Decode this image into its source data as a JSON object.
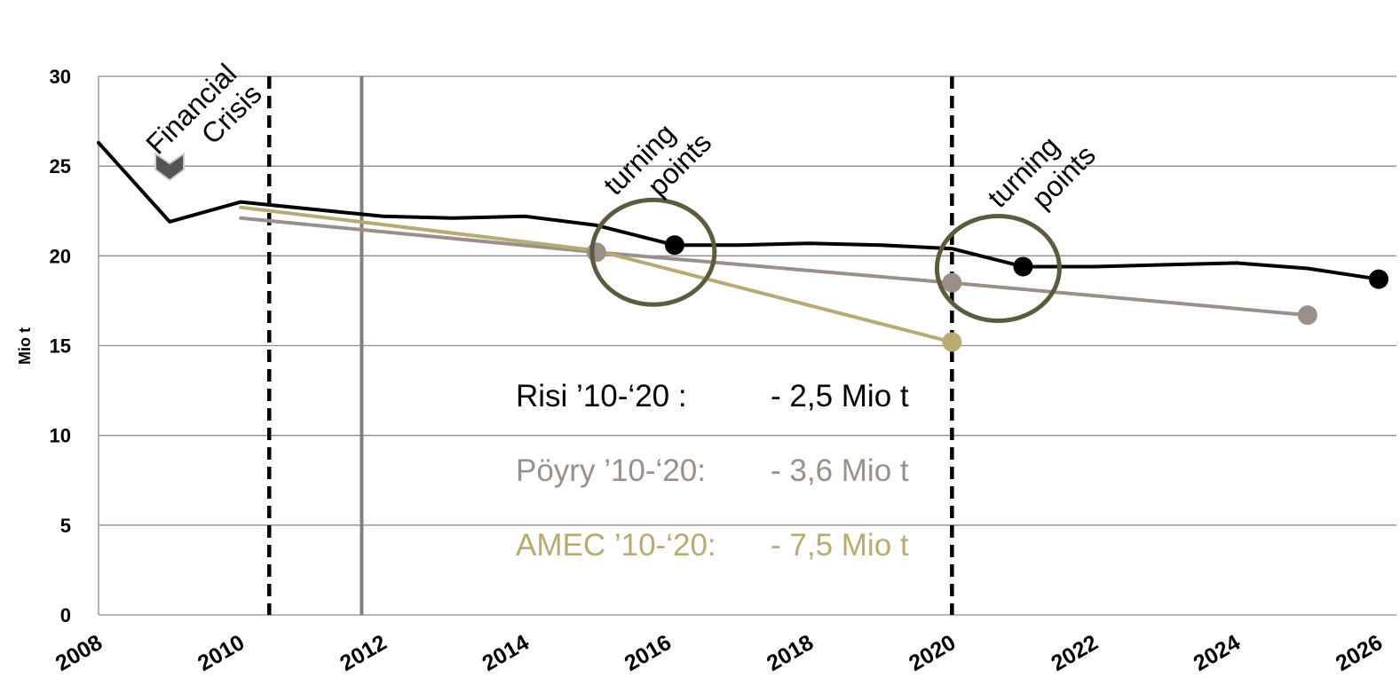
{
  "chart_data": {
    "type": "line",
    "title": "",
    "xlabel": "",
    "ylabel": "Mio t",
    "xlim": [
      2008,
      2026
    ],
    "ylim": [
      0,
      30
    ],
    "x_ticks": [
      "2008",
      "2010",
      "2012",
      "2014",
      "2016",
      "2018",
      "2020",
      "2022",
      "2024",
      "2026"
    ],
    "y_ticks": [
      "0",
      "5",
      "10",
      "15",
      "20",
      "25",
      "30"
    ],
    "grid": true,
    "series": [
      {
        "name": "Risi",
        "color": "#000000",
        "points": [
          [
            2008,
            26.3
          ],
          [
            2009,
            21.9
          ],
          [
            2010,
            23.0
          ],
          [
            2011,
            22.6
          ],
          [
            2012,
            22.2
          ],
          [
            2013,
            22.1
          ],
          [
            2014,
            22.2
          ],
          [
            2015,
            21.7
          ],
          [
            2016.1,
            20.6
          ],
          [
            2017,
            20.6
          ],
          [
            2018,
            20.7
          ],
          [
            2019,
            20.6
          ],
          [
            2020,
            20.4
          ],
          [
            2021,
            19.4
          ],
          [
            2022,
            19.4
          ],
          [
            2023,
            19.5
          ],
          [
            2024,
            19.6
          ],
          [
            2025,
            19.3
          ],
          [
            2026,
            18.7
          ]
        ],
        "markers": [
          [
            2016.1,
            20.6
          ],
          [
            2021,
            19.4
          ],
          [
            2026,
            18.7
          ]
        ]
      },
      {
        "name": "Pöyry",
        "color": "#9a9089",
        "points": [
          [
            2010,
            22.1
          ],
          [
            2015,
            20.2
          ],
          [
            2020,
            18.5
          ],
          [
            2025,
            16.7
          ]
        ],
        "markers": [
          [
            2015,
            20.2
          ],
          [
            2020,
            18.5
          ],
          [
            2025,
            16.7
          ]
        ]
      },
      {
        "name": "AMEC",
        "color": "#b8aa73",
        "points": [
          [
            2010,
            22.7
          ],
          [
            2015,
            20.3
          ],
          [
            2020,
            15.2
          ]
        ],
        "markers": [
          [
            2020,
            15.2
          ]
        ]
      }
    ],
    "vertical_lines": [
      {
        "x": 2010.4,
        "style": "dashed",
        "color": "#000000"
      },
      {
        "x": 2011.7,
        "style": "solid",
        "color": "#808080"
      },
      {
        "x": 2020,
        "style": "dashed",
        "color": "#000000"
      }
    ],
    "annotations": [
      {
        "text": [
          "Financial",
          "Crisis"
        ],
        "x": 2009.4,
        "y": 27.8
      },
      {
        "text": [
          "turning",
          "points"
        ],
        "x": 2015.7,
        "y": 25.0
      },
      {
        "text": [
          "turning",
          "points"
        ],
        "x": 2021.1,
        "y": 24.3
      }
    ],
    "circles": [
      {
        "cx": 2015.8,
        "cy": 20.2
      },
      {
        "cx": 2020.65,
        "cy": 19.3
      }
    ],
    "crisis_arrow": {
      "x": 2009,
      "y": 25
    },
    "legend": [
      {
        "label": "Risi ’10-‘20 :",
        "value": "- 2,5 Mio t",
        "color": "#000000"
      },
      {
        "label": "Pöyry ’10-‘20:",
        "value": "- 3,6 Mio t",
        "color": "#9a9089"
      },
      {
        "label": "AMEC ’10-‘20:",
        "value": "- 7,5 Mio t",
        "color": "#b8aa73"
      }
    ],
    "circle_color": "#5e5a3e"
  }
}
